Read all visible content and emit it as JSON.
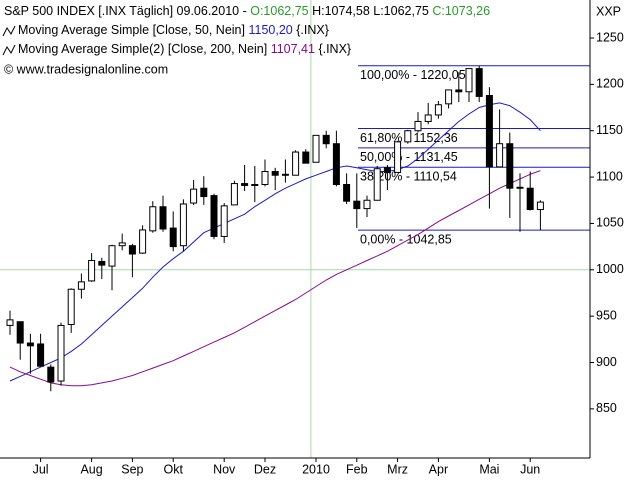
{
  "chart_data": {
    "type": "candlestick",
    "header": {
      "instrument": "S&P 500 INDEX [.INX Täglich] 09.06.2010 -",
      "open": "O:1062,75",
      "high_low": "H:1074,58 L:1062,75",
      "close": "C:1073,26"
    },
    "copyright": "© www.tradesignalonline.com",
    "corner_label": "XXP",
    "categories": [
      null,
      null,
      null,
      "Jul",
      null,
      null,
      null,
      null,
      "Aug",
      null,
      null,
      null,
      "Sep",
      null,
      null,
      null,
      "Okt",
      null,
      null,
      null,
      null,
      "Nov",
      null,
      null,
      null,
      "Dez",
      null,
      null,
      null,
      null,
      "2010",
      null,
      null,
      null,
      "Feb",
      null,
      null,
      null,
      "Mrz",
      null,
      null,
      null,
      "Apr",
      null,
      null,
      null,
      null,
      "Mai",
      null,
      null,
      null,
      "Jun",
      null
    ],
    "open": [
      940,
      944,
      921,
      920,
      895,
      880,
      941,
      979,
      988,
      1009,
      1004,
      1026,
      1026,
      1018,
      1042,
      1068,
      1045,
      1026,
      1072,
      1088,
      1080,
      1036,
      1070,
      1093,
      1091,
      1092,
      1106,
      1103,
      1102,
      1127,
      1116,
      1145,
      1136,
      1092,
      1074,
      1066,
      1075,
      1110,
      1105,
      1138,
      1150,
      1160,
      1167,
      1179,
      1194,
      1192,
      1217,
      1188,
      1111,
      1136,
      1088,
      1088,
      1065
    ],
    "high": [
      956,
      944,
      931,
      931,
      898,
      943,
      980,
      996,
      1018,
      1013,
      1027,
      1039,
      1028,
      1048,
      1074,
      1080,
      1063,
      1076,
      1097,
      1101,
      1082,
      1072,
      1096,
      1113,
      1112,
      1119,
      1110,
      1119,
      1129,
      1130,
      1145,
      1150,
      1150,
      1104,
      1104,
      1080,
      1112,
      1113,
      1139,
      1151,
      1170,
      1180,
      1182,
      1194,
      1213,
      1217,
      1220,
      1197,
      1173,
      1148,
      1104,
      1106,
      1075
    ],
    "low": [
      930,
      903,
      888,
      896,
      869,
      875,
      932,
      969,
      987,
      990,
      978,
      1021,
      992,
      1017,
      1040,
      1041,
      1020,
      1020,
      1070,
      1070,
      1033,
      1029,
      1070,
      1085,
      1073,
      1090,
      1086,
      1094,
      1102,
      1115,
      1116,
      1131,
      1090,
      1071,
      1045,
      1057,
      1075,
      1086,
      1105,
      1136,
      1148,
      1157,
      1163,
      1174,
      1181,
      1181,
      1181,
      1066,
      1111,
      1056,
      1041,
      1064,
      1043
    ],
    "close": [
      946,
      921,
      918,
      896,
      879,
      940,
      979,
      987,
      1010,
      1005,
      1026,
      1029,
      1017,
      1043,
      1068,
      1044,
      1025,
      1071,
      1087,
      1079,
      1036,
      1069,
      1093,
      1091,
      1092,
      1106,
      1102,
      1102,
      1127,
      1115,
      1145,
      1136,
      1092,
      1074,
      1066,
      1075,
      1109,
      1105,
      1138,
      1150,
      1160,
      1167,
      1178,
      1194,
      1192,
      1217,
      1187,
      1111,
      1136,
      1088,
      1089,
      1065,
      1073
    ],
    "up_color": "#ffffff",
    "down_color": "#000000",
    "series": [
      {
        "name": "Moving Average Simple [Close, 50, Nein]",
        "last_label": "1150,20",
        "suffix": "{.INX}",
        "color": "#1a1acc",
        "values": [
          880,
          885,
          890,
          895,
          900,
          905,
          912,
          920,
          930,
          940,
          950,
          960,
          970,
          980,
          992,
          1003,
          1012,
          1020,
          1030,
          1040,
          1045,
          1050,
          1055,
          1060,
          1068,
          1075,
          1082,
          1088,
          1093,
          1098,
          1102,
          1106,
          1110,
          1112,
          1110,
          1108,
          1106,
          1106,
          1108,
          1112,
          1120,
          1130,
          1140,
          1150,
          1160,
          1168,
          1175,
          1178,
          1180,
          1177,
          1170,
          1162,
          1150
        ]
      },
      {
        "name": "Moving Average Simple(2) [Close, 200, Nein]",
        "last_label": "1107,41",
        "suffix": "{.INX}",
        "color": "#8b0a8b",
        "values": [
          895,
          890,
          886,
          882,
          878,
          876,
          875,
          875,
          876,
          878,
          880,
          883,
          886,
          890,
          894,
          898,
          902,
          907,
          912,
          917,
          922,
          927,
          932,
          938,
          944,
          950,
          956,
          962,
          968,
          975,
          982,
          989,
          995,
          1000,
          1005,
          1010,
          1015,
          1020,
          1026,
          1032,
          1038,
          1045,
          1052,
          1058,
          1064,
          1070,
          1076,
          1082,
          1088,
          1093,
          1098,
          1103,
          1107
        ]
      }
    ],
    "fibonacci": {
      "color": "#1a1acc",
      "values": [
        1220.05,
        1152.36,
        1131.45,
        1110.54,
        1042.85
      ],
      "value_labels": [
        "100,00% - 1220,05",
        "61,80% - 1152,36",
        "50,00% - 1131,45",
        "38,20% - 1110,54",
        "0,00% - 1042,85"
      ]
    },
    "reference_line": 1000,
    "reference_color": "#a8d8a8",
    "ylim": [
      797,
      1291
    ],
    "yticks": [
      850,
      900,
      950,
      1000,
      1050,
      1100,
      1150,
      1200,
      1250
    ]
  }
}
